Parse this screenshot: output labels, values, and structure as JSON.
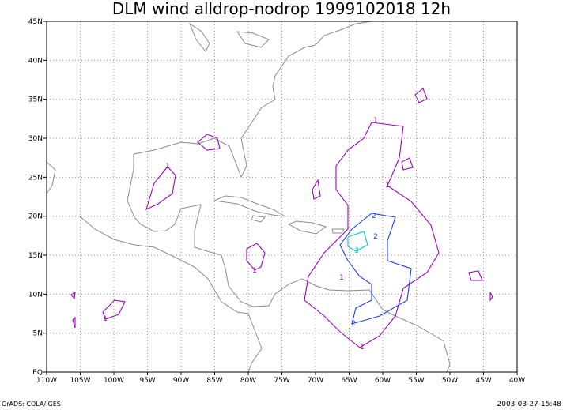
{
  "map": {
    "title": "DLM wind alldrop-nodrop 1999102018 12h",
    "xlim": [
      -110,
      -40
    ],
    "ylim": [
      0,
      45
    ],
    "xticks": [
      {
        "value": -110,
        "label": "110W"
      },
      {
        "value": -105,
        "label": "105W"
      },
      {
        "value": -100,
        "label": "100W"
      },
      {
        "value": -95,
        "label": "95W"
      },
      {
        "value": -90,
        "label": "90W"
      },
      {
        "value": -85,
        "label": "85W"
      },
      {
        "value": -80,
        "label": "80W"
      },
      {
        "value": -75,
        "label": "75W"
      },
      {
        "value": -70,
        "label": "70W"
      },
      {
        "value": -65,
        "label": "65W"
      },
      {
        "value": -60,
        "label": "60W"
      },
      {
        "value": -55,
        "label": "55W"
      },
      {
        "value": -50,
        "label": "50W"
      },
      {
        "value": -45,
        "label": "45W"
      },
      {
        "value": -40,
        "label": "40W"
      }
    ],
    "yticks": [
      {
        "value": 0,
        "label": "EQ"
      },
      {
        "value": 5,
        "label": "5N"
      },
      {
        "value": 10,
        "label": "10N"
      },
      {
        "value": 15,
        "label": "15N"
      },
      {
        "value": 20,
        "label": "20N"
      },
      {
        "value": 25,
        "label": "25N"
      },
      {
        "value": 30,
        "label": "30N"
      },
      {
        "value": 35,
        "label": "35N"
      },
      {
        "value": 40,
        "label": "40N"
      },
      {
        "value": 45,
        "label": "45N"
      }
    ],
    "grid": true,
    "contour_labels": [
      1,
      1,
      1,
      1,
      1,
      1,
      1,
      2,
      2,
      2,
      3
    ],
    "footer_left": "GrADS: COLA/IGES",
    "footer_right": "2003-03-27-15:48"
  }
}
